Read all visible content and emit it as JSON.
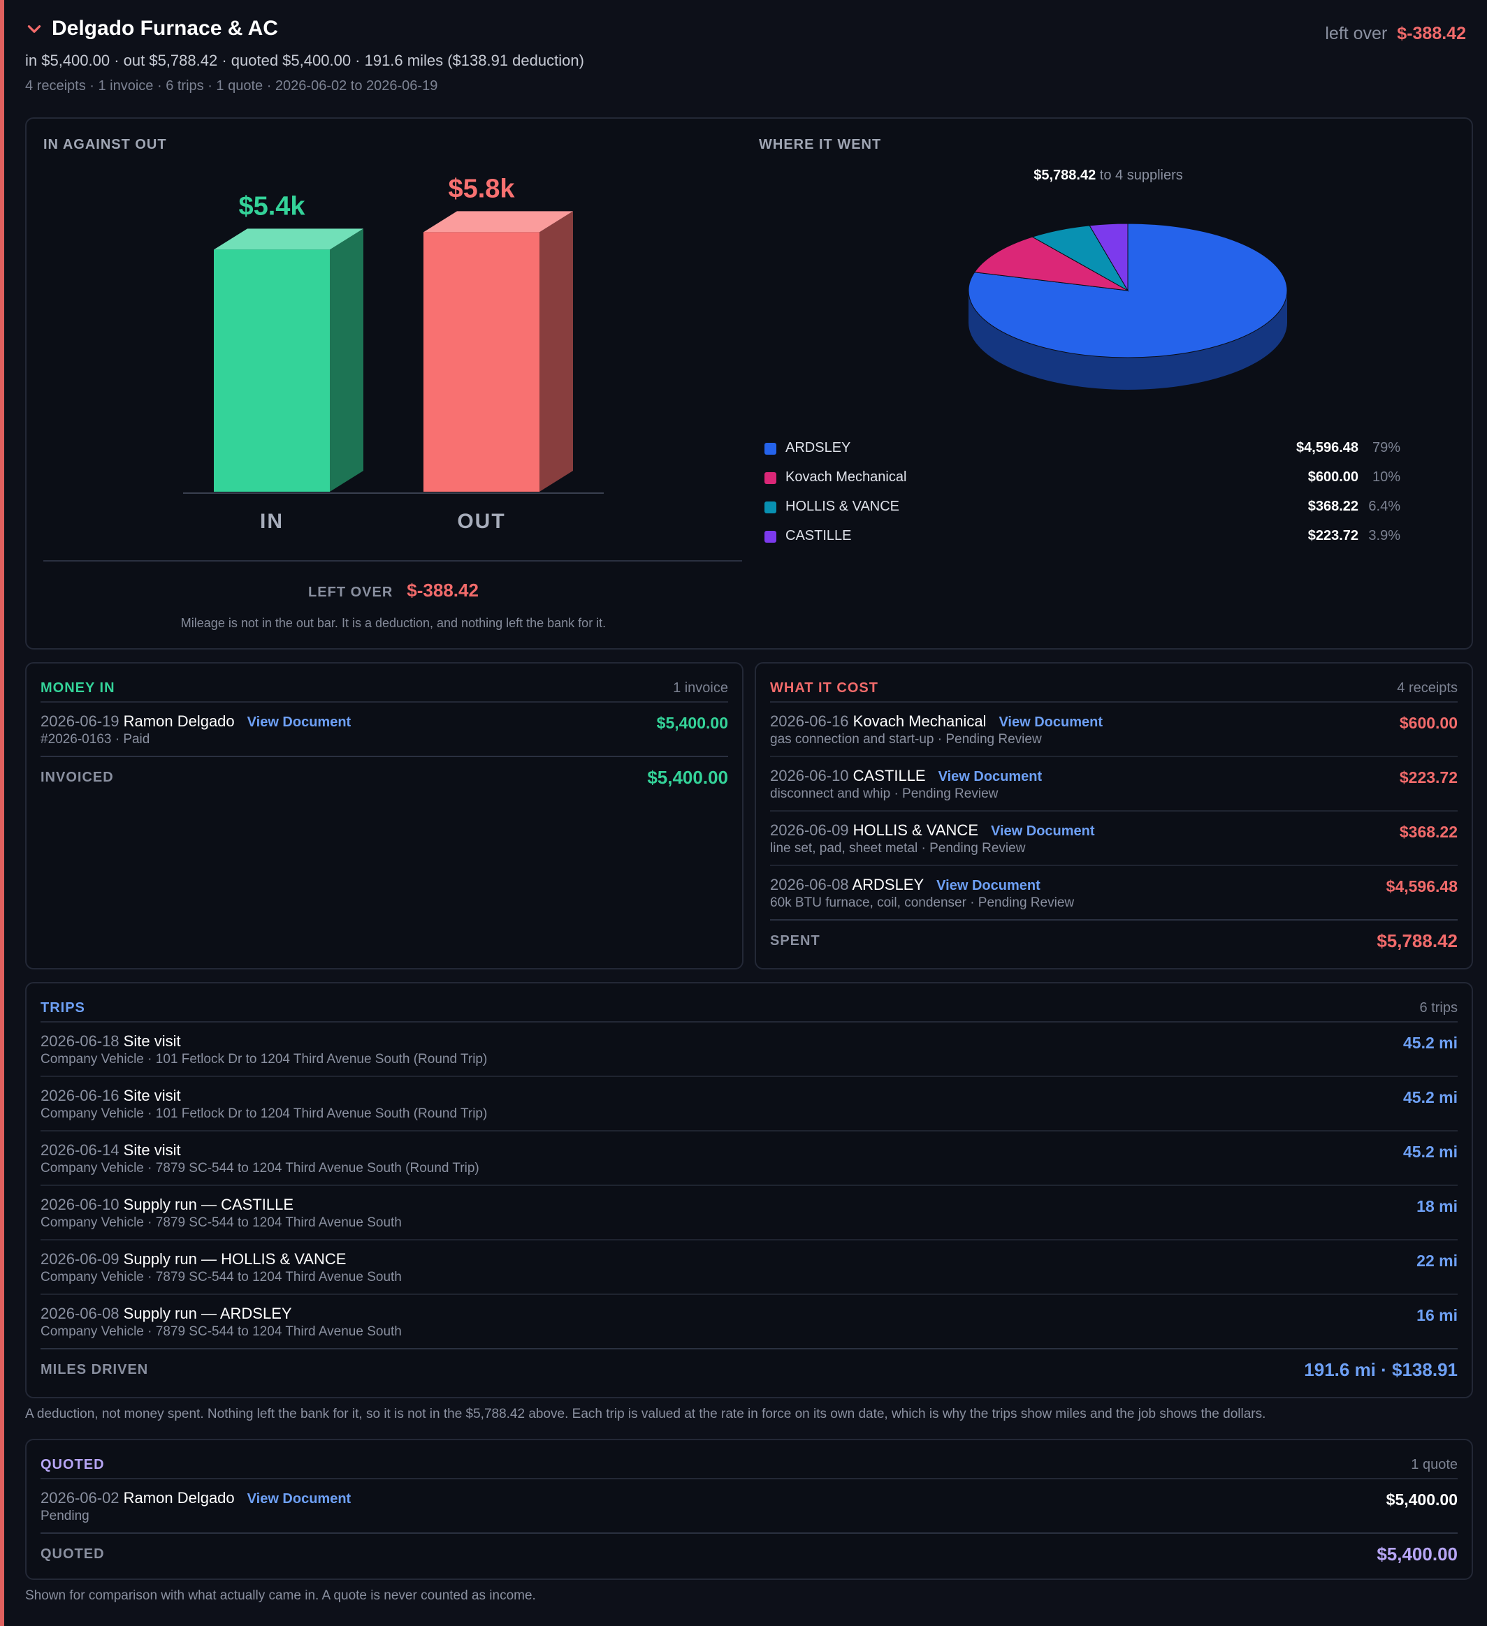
{
  "header": {
    "title": "Delgado Furnace & AC",
    "left_over_label": "left over",
    "left_over_value": "$-388.42",
    "summary": "in $5,400.00 · out $5,788.42 · quoted $5,400.00 · 191.6 miles ($138.91 deduction)",
    "meta": "4 receipts · 1 invoice · 6 trips · 1 quote · 2026-06-02 to 2026-06-19"
  },
  "chart_panel": {
    "heading": "IN AGAINST OUT",
    "left_over_label": "LEFT OVER",
    "left_over_value": "$-388.42",
    "note": "Mileage is not in the out bar. It is a deduction, and nothing left the bank for it."
  },
  "pie_panel": {
    "heading": "WHERE IT WENT",
    "total": "$5,788.42",
    "total_suffix": "to 4 suppliers"
  },
  "chart_data": [
    {
      "type": "bar",
      "categories": [
        "IN",
        "OUT"
      ],
      "values": [
        5400.0,
        5788.42
      ],
      "data_labels": [
        "$5.4k",
        "$5.8k"
      ],
      "colors": [
        "#34d399",
        "#f87171"
      ],
      "title": "",
      "xlabel": "",
      "ylabel": ""
    },
    {
      "type": "pie",
      "labels": [
        "ARDSLEY",
        "Kovach Mechanical",
        "HOLLIS & VANCE",
        "CASTILLE"
      ],
      "values": [
        4596.48,
        600.0,
        368.22,
        223.72
      ],
      "amounts": [
        "$4,596.48",
        "$600.00",
        "$368.22",
        "$223.72"
      ],
      "percents": [
        "79%",
        "10%",
        "6.4%",
        "3.9%"
      ],
      "colors": [
        "#2563eb",
        "#db2777",
        "#0891b2",
        "#7c3aed"
      ]
    }
  ],
  "money_in": {
    "heading": "MONEY IN",
    "count": "1 invoice",
    "rows": [
      {
        "date": "2026-06-19",
        "name": "Ramon Delgado",
        "link": "View Document",
        "sub": "#2026-0163 · Paid",
        "amount": "$5,400.00"
      }
    ],
    "total_label": "INVOICED",
    "total_value": "$5,400.00"
  },
  "what_it_cost": {
    "heading": "WHAT IT COST",
    "count": "4 receipts",
    "rows": [
      {
        "date": "2026-06-16",
        "name": "Kovach Mechanical",
        "link": "View Document",
        "sub": "gas connection and start-up · Pending Review",
        "amount": "$600.00"
      },
      {
        "date": "2026-06-10",
        "name": "CASTILLE",
        "link": "View Document",
        "sub": "disconnect and whip · Pending Review",
        "amount": "$223.72"
      },
      {
        "date": "2026-06-09",
        "name": "HOLLIS & VANCE",
        "link": "View Document",
        "sub": "line set, pad, sheet metal · Pending Review",
        "amount": "$368.22"
      },
      {
        "date": "2026-06-08",
        "name": "ARDSLEY",
        "link": "View Document",
        "sub": "60k BTU furnace, coil, condenser · Pending Review",
        "amount": "$4,596.48"
      }
    ],
    "total_label": "SPENT",
    "total_value": "$5,788.42"
  },
  "trips": {
    "heading": "TRIPS",
    "count": "6 trips",
    "rows": [
      {
        "date": "2026-06-18",
        "name": "Site visit",
        "sub": "Company Vehicle · 101 Fetlock Dr to 1204 Third Avenue South (Round Trip)",
        "miles": "45.2 mi"
      },
      {
        "date": "2026-06-16",
        "name": "Site visit",
        "sub": "Company Vehicle · 101 Fetlock Dr to 1204 Third Avenue South (Round Trip)",
        "miles": "45.2 mi"
      },
      {
        "date": "2026-06-14",
        "name": "Site visit",
        "sub": "Company Vehicle · 7879 SC-544 to 1204 Third Avenue South (Round Trip)",
        "miles": "45.2 mi"
      },
      {
        "date": "2026-06-10",
        "name": "Supply run — CASTILLE",
        "sub": "Company Vehicle · 7879 SC-544 to 1204 Third Avenue South",
        "miles": "18 mi"
      },
      {
        "date": "2026-06-09",
        "name": "Supply run — HOLLIS & VANCE",
        "sub": "Company Vehicle · 7879 SC-544 to 1204 Third Avenue South",
        "miles": "22 mi"
      },
      {
        "date": "2026-06-08",
        "name": "Supply run — ARDSLEY",
        "sub": "Company Vehicle · 7879 SC-544 to 1204 Third Avenue South",
        "miles": "16 mi"
      }
    ],
    "total_label": "MILES DRIVEN",
    "total_value": "191.6 mi · $138.91",
    "note": "A deduction, not money spent. Nothing left the bank for it, so it is not in the $5,788.42 above. Each trip is valued at the rate in force on its own date, which is why the trips show miles and the job shows the dollars."
  },
  "quoted": {
    "heading": "QUOTED",
    "count": "1 quote",
    "rows": [
      {
        "date": "2026-06-02",
        "name": "Ramon Delgado",
        "link": "View Document",
        "sub": "Pending",
        "amount": "$5,400.00"
      }
    ],
    "total_label": "QUOTED",
    "total_value": "$5,400.00",
    "note": "Shown for comparison with what actually came in. A quote is never counted as income."
  },
  "colors": {
    "accent_left_border": "#e0605e",
    "in": "#34d399",
    "out": "#f26b6b",
    "link": "#6ea0f5",
    "quote": "#b7a6f5"
  }
}
